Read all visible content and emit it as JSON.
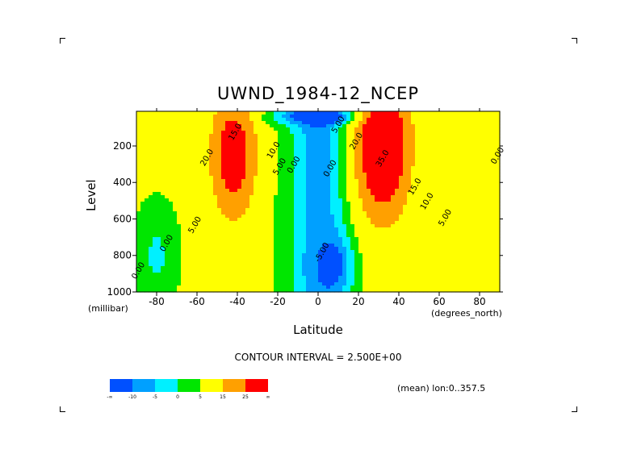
{
  "chart_data": {
    "type": "heatmap",
    "title": "UWND_1984-12_NCEP",
    "xlabel": "Latitude",
    "ylabel": "Level",
    "x_units": "(degrees_north)",
    "y_units": "(millibar)",
    "x_ticks": [
      -80,
      -60,
      -40,
      -20,
      0,
      20,
      40,
      60,
      80
    ],
    "x_tick_labels": [
      "-80",
      "-60",
      "-40",
      "-20",
      "0",
      "20",
      "40",
      "60",
      "80"
    ],
    "y_ticks": [
      200,
      400,
      600,
      800,
      1000
    ],
    "y_tick_labels": [
      "200",
      "400",
      "600",
      "800",
      "1000"
    ],
    "xlim": [
      -90,
      90
    ],
    "ylim": [
      1000,
      10
    ],
    "contour_interval_text": "CONTOUR INTERVAL = 2.500E+00",
    "mean_text": "(mean) lon:0..357.5",
    "jets": [
      {
        "lat": -42,
        "level": 250,
        "max": 27.5
      },
      {
        "lat": 32,
        "level": 200,
        "max": 37.5
      }
    ],
    "contour_labels": [
      {
        "text": "15.0",
        "lat": -40,
        "level": 130
      },
      {
        "text": "20.0",
        "lat": -54,
        "level": 270
      },
      {
        "text": "10.0",
        "lat": -21,
        "level": 230
      },
      {
        "text": "5.00",
        "lat": -18,
        "level": 320
      },
      {
        "text": "0.00",
        "lat": -11,
        "level": 310
      },
      {
        "text": "5.00",
        "lat": -60,
        "level": 640
      },
      {
        "text": "0.00",
        "lat": -74,
        "level": 740
      },
      {
        "text": "0.00",
        "lat": -88,
        "level": 890
      },
      {
        "text": "0.00",
        "lat": 7,
        "level": 330
      },
      {
        "text": "-5.00",
        "lat": 3,
        "level": 790
      },
      {
        "text": "20.0",
        "lat": 20,
        "level": 180
      },
      {
        "text": "5.00",
        "lat": 11,
        "level": 90
      },
      {
        "text": "35.0",
        "lat": 33,
        "level": 275
      },
      {
        "text": "15.0",
        "lat": 49,
        "level": 430
      },
      {
        "text": "10.0",
        "lat": 55,
        "level": 510
      },
      {
        "text": "5.00",
        "lat": 64,
        "level": 600
      },
      {
        "text": "0.00",
        "lat": 90,
        "level": 260
      }
    ],
    "legend": {
      "colors": [
        "#0050ff",
        "#00a0ff",
        "#00f0ff",
        "#00e600",
        "#ffff00",
        "#ffa000",
        "#ff0000"
      ],
      "labels": [
        "-∞",
        "-10",
        "-5",
        "0",
        "5",
        "15",
        "25",
        "∞"
      ]
    }
  }
}
